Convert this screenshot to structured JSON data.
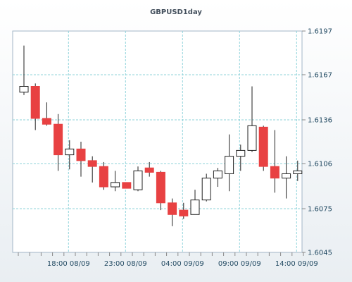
{
  "chart_data": {
    "type": "candlestick",
    "title": "GBPUSD1day",
    "xlabel": "",
    "ylabel": "",
    "ylim": [
      1.6045,
      1.6197
    ],
    "grid": true,
    "y_ticks": [
      "1.6045",
      "1.6075",
      "1.6106",
      "1.6136",
      "1.6167",
      "1.6197"
    ],
    "x_ticks": [
      {
        "label": "18:00 08/09",
        "index": 4
      },
      {
        "label": "23:00 08/09",
        "index": 9
      },
      {
        "label": "04:00 09/09",
        "index": 14
      },
      {
        "label": "09:00 09/09",
        "index": 19
      },
      {
        "label": "14:00 09/09",
        "index": 24
      }
    ],
    "candles": [
      {
        "open": 1.6155,
        "high": 1.6187,
        "low": 1.6153,
        "close": 1.6159
      },
      {
        "open": 1.6159,
        "high": 1.6161,
        "low": 1.6129,
        "close": 1.6137
      },
      {
        "open": 1.6137,
        "high": 1.6148,
        "low": 1.6132,
        "close": 1.6133
      },
      {
        "open": 1.6133,
        "high": 1.614,
        "low": 1.6101,
        "close": 1.6112
      },
      {
        "open": 1.6112,
        "high": 1.6122,
        "low": 1.6102,
        "close": 1.6116
      },
      {
        "open": 1.6116,
        "high": 1.6121,
        "low": 1.6097,
        "close": 1.6108
      },
      {
        "open": 1.6108,
        "high": 1.6111,
        "low": 1.6093,
        "close": 1.6104
      },
      {
        "open": 1.6104,
        "high": 1.6107,
        "low": 1.6088,
        "close": 1.609
      },
      {
        "open": 1.609,
        "high": 1.6101,
        "low": 1.6087,
        "close": 1.6093
      },
      {
        "open": 1.6093,
        "high": 1.6093,
        "low": 1.6089,
        "close": 1.6089
      },
      {
        "open": 1.6088,
        "high": 1.6104,
        "low": 1.6087,
        "close": 1.6101
      },
      {
        "open": 1.6103,
        "high": 1.6107,
        "low": 1.6097,
        "close": 1.61
      },
      {
        "open": 1.61,
        "high": 1.6101,
        "low": 1.6074,
        "close": 1.6079
      },
      {
        "open": 1.6079,
        "high": 1.6082,
        "low": 1.6063,
        "close": 1.6071
      },
      {
        "open": 1.6074,
        "high": 1.6079,
        "low": 1.6068,
        "close": 1.607
      },
      {
        "open": 1.6071,
        "high": 1.6088,
        "low": 1.6071,
        "close": 1.6081
      },
      {
        "open": 1.6081,
        "high": 1.6099,
        "low": 1.608,
        "close": 1.6096
      },
      {
        "open": 1.6096,
        "high": 1.6103,
        "low": 1.609,
        "close": 1.6101
      },
      {
        "open": 1.6099,
        "high": 1.6126,
        "low": 1.6087,
        "close": 1.6111
      },
      {
        "open": 1.6111,
        "high": 1.6119,
        "low": 1.6101,
        "close": 1.6115
      },
      {
        "open": 1.6115,
        "high": 1.6159,
        "low": 1.6114,
        "close": 1.6132
      },
      {
        "open": 1.6131,
        "high": 1.6132,
        "low": 1.6101,
        "close": 1.6104
      },
      {
        "open": 1.6104,
        "high": 1.6129,
        "low": 1.6086,
        "close": 1.6096
      },
      {
        "open": 1.6096,
        "high": 1.6111,
        "low": 1.6082,
        "close": 1.6099
      },
      {
        "open": 1.6099,
        "high": 1.6108,
        "low": 1.6094,
        "close": 1.6101
      }
    ]
  },
  "colors": {
    "bearish": "#e84142",
    "bullish": "#ffffff",
    "outline": "#222222",
    "grid": "#8fd3da",
    "axis": "#888888",
    "label": "#234b63"
  }
}
